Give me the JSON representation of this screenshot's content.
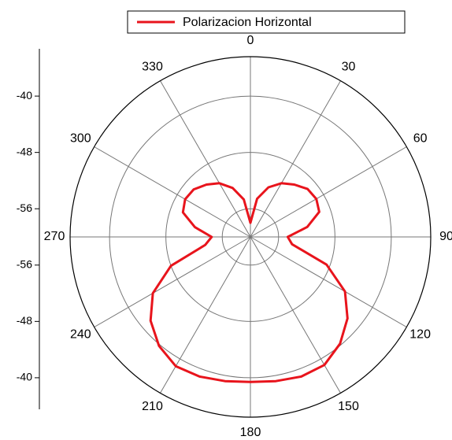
{
  "chart_data": {
    "type": "polar",
    "theta": [
      0,
      10,
      20,
      30,
      40,
      50,
      60,
      70,
      80,
      90,
      100,
      110,
      120,
      130,
      140,
      150,
      160,
      170,
      180,
      190,
      200,
      210,
      220,
      230,
      240,
      250,
      260,
      270,
      280,
      290,
      300,
      310,
      320,
      330,
      340,
      350
    ],
    "series": [
      {
        "name": "Polarizacion Horizontal",
        "color": "#e8141c",
        "values": [
          -58,
          -54.5,
          -52.5,
          -51.2,
          -50.3,
          -49.4,
          -49.2,
          -49.6,
          -51.8,
          -54.7,
          -54.0,
          -48.5,
          -44.5,
          -42.0,
          -40.2,
          -39.0,
          -38.9,
          -39.2,
          -39.4,
          -39.2,
          -38.9,
          -38.8,
          -39.8,
          -41.5,
          -44.0,
          -48.0,
          -53.5,
          -54.5,
          -52.0,
          -49.8,
          -49.3,
          -49.5,
          -50.3,
          -51.2,
          -52.6,
          -54.6
        ]
      }
    ],
    "rlim": [
      -60,
      -34.4
    ],
    "rticks": [
      -56,
      -48,
      -40
    ],
    "thetaticks": [
      0,
      30,
      60,
      90,
      120,
      150,
      180,
      210,
      240,
      270,
      300,
      330
    ],
    "direction": "clockwise",
    "zero": "top",
    "grid": true,
    "legend": "top"
  }
}
